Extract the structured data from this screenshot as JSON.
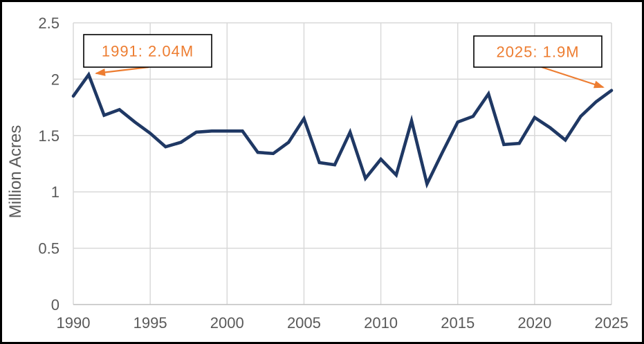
{
  "frame": {
    "background": "#ffffff",
    "border_color": "#000000"
  },
  "chart_data": {
    "type": "line",
    "title": "",
    "xlabel": "",
    "ylabel": "Million Acres",
    "xlim": [
      1990,
      2025
    ],
    "ylim": [
      0,
      2.5
    ],
    "grid": true,
    "legend": "none",
    "x_ticks": [
      1990,
      1995,
      2000,
      2005,
      2010,
      2015,
      2020,
      2025
    ],
    "y_ticks": [
      0,
      0.5,
      1,
      1.5,
      2,
      2.5
    ],
    "y_tick_labels": [
      "0",
      "0.5",
      "1",
      "1.5",
      "2",
      "2.5"
    ],
    "x": [
      1990,
      1991,
      1992,
      1993,
      1994,
      1995,
      1996,
      1997,
      1998,
      1999,
      2000,
      2001,
      2002,
      2003,
      2004,
      2005,
      2006,
      2007,
      2008,
      2009,
      2010,
      2011,
      2012,
      2013,
      2014,
      2015,
      2016,
      2017,
      2018,
      2019,
      2020,
      2021,
      2022,
      2023,
      2024,
      2025
    ],
    "series": [
      {
        "name": "Million Acres",
        "values": [
          1.85,
          2.04,
          1.68,
          1.73,
          1.62,
          1.52,
          1.4,
          1.44,
          1.53,
          1.54,
          1.54,
          1.54,
          1.35,
          1.34,
          1.44,
          1.65,
          1.26,
          1.24,
          1.53,
          1.12,
          1.29,
          1.15,
          1.63,
          1.07,
          1.35,
          1.62,
          1.67,
          1.87,
          1.42,
          1.43,
          1.66,
          1.57,
          1.46,
          1.67,
          1.8,
          1.9
        ],
        "color": "#1f3864"
      }
    ],
    "annotations": [
      {
        "label": "1991: 2.04M",
        "target_year": 1991,
        "target_value": 2.04
      },
      {
        "label": "2025: 1.9M",
        "target_year": 2025,
        "target_value": 1.9
      }
    ],
    "colors": {
      "line": "#1f3864",
      "gridline": "#d9d9d9",
      "axis_line": "#bfbfbf",
      "tick_label": "#595959",
      "annotation_text": "#ed7d31",
      "annotation_arrow": "#ed7d31",
      "annotation_box_fill": "#ffffff",
      "annotation_box_border": "#000000"
    }
  }
}
